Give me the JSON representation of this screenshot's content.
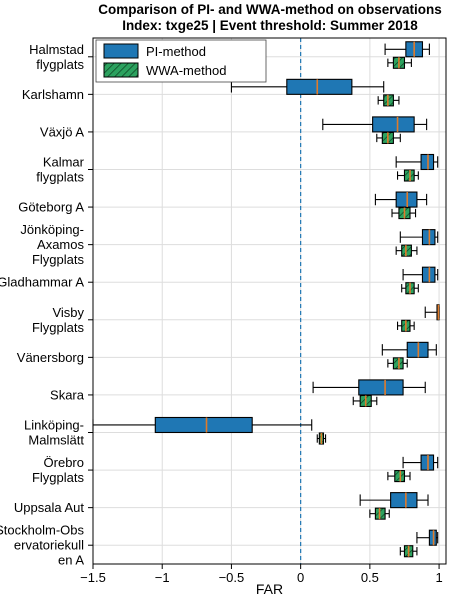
{
  "chart_data": {
    "type": "box",
    "title_line1": "Comparison of PI- and WWA-method on observations",
    "title_line2": "Index: txge25 | Event threshold: Summer 2018",
    "xlabel": "FAR",
    "xlim": [
      -1.5,
      1.05
    ],
    "xticks": [
      -1.5,
      -1.0,
      -0.5,
      0,
      0.5,
      1
    ],
    "xtick_labels": [
      "−1.5",
      "−1",
      "−0.5",
      "0",
      "0.5",
      "1"
    ],
    "reference_line_x": 0,
    "grid": true,
    "legend": {
      "placement": "top-left",
      "entries": [
        "PI-method",
        "WWA-method"
      ]
    },
    "colors": {
      "pi_fill": "#1f77b4",
      "wwa_fill": "#2ca25f",
      "median": "#e07b2a",
      "reference_line": "#1f77b4",
      "grid": "#dddddd"
    },
    "stations": [
      {
        "label": [
          "Halmstad",
          "flygplats"
        ],
        "pi": {
          "whislo": 0.61,
          "q1": 0.76,
          "med": 0.82,
          "q3": 0.88,
          "whishi": 0.93
        },
        "wwa": {
          "whislo": 0.63,
          "q1": 0.67,
          "med": 0.71,
          "q3": 0.75,
          "whishi": 0.8
        }
      },
      {
        "label": [
          "Karlshamn"
        ],
        "pi": {
          "whislo": -0.5,
          "q1": -0.1,
          "med": 0.12,
          "q3": 0.37,
          "whishi": 0.6
        },
        "wwa": {
          "whislo": 0.56,
          "q1": 0.6,
          "med": 0.63,
          "q3": 0.67,
          "whishi": 0.71
        }
      },
      {
        "label": [
          "Växjö A"
        ],
        "pi": {
          "whislo": 0.16,
          "q1": 0.52,
          "med": 0.7,
          "q3": 0.82,
          "whishi": 0.91
        },
        "wwa": {
          "whislo": 0.55,
          "q1": 0.59,
          "med": 0.63,
          "q3": 0.67,
          "whishi": 0.72
        }
      },
      {
        "label": [
          "Kalmar",
          "flygplats"
        ],
        "pi": {
          "whislo": 0.69,
          "q1": 0.87,
          "med": 0.92,
          "q3": 0.96,
          "whishi": 0.99
        },
        "wwa": {
          "whislo": 0.7,
          "q1": 0.75,
          "med": 0.79,
          "q3": 0.82,
          "whishi": 0.85
        }
      },
      {
        "label": [
          "Göteborg A"
        ],
        "pi": {
          "whislo": 0.54,
          "q1": 0.69,
          "med": 0.77,
          "q3": 0.84,
          "whishi": 0.91
        },
        "wwa": {
          "whislo": 0.66,
          "q1": 0.71,
          "med": 0.75,
          "q3": 0.79,
          "whishi": 0.83
        }
      },
      {
        "label": [
          "Jönköping-",
          "Axamos",
          "Flygplats"
        ],
        "pi": {
          "whislo": 0.72,
          "q1": 0.88,
          "med": 0.93,
          "q3": 0.97,
          "whishi": 0.99
        },
        "wwa": {
          "whislo": 0.69,
          "q1": 0.73,
          "med": 0.76,
          "q3": 0.8,
          "whishi": 0.84
        }
      },
      {
        "label": [
          "Gladhammar A"
        ],
        "pi": {
          "whislo": 0.74,
          "q1": 0.88,
          "med": 0.93,
          "q3": 0.97,
          "whishi": 0.99
        },
        "wwa": {
          "whislo": 0.73,
          "q1": 0.76,
          "med": 0.79,
          "q3": 0.82,
          "whishi": 0.85
        }
      },
      {
        "label": [
          "Visby",
          "Flygplats"
        ],
        "pi": {
          "whislo": 0.9,
          "q1": 0.985,
          "med": 0.995,
          "q3": 1.0,
          "whishi": 1.0
        },
        "wwa": {
          "whislo": 0.7,
          "q1": 0.73,
          "med": 0.76,
          "q3": 0.79,
          "whishi": 0.82
        }
      },
      {
        "label": [
          "Vänersborg"
        ],
        "pi": {
          "whislo": 0.59,
          "q1": 0.77,
          "med": 0.85,
          "q3": 0.92,
          "whishi": 0.98
        },
        "wwa": {
          "whislo": 0.63,
          "q1": 0.67,
          "med": 0.71,
          "q3": 0.74,
          "whishi": 0.77
        }
      },
      {
        "label": [
          "Skara"
        ],
        "pi": {
          "whislo": 0.09,
          "q1": 0.42,
          "med": 0.61,
          "q3": 0.74,
          "whishi": 0.9
        },
        "wwa": {
          "whislo": 0.38,
          "q1": 0.43,
          "med": 0.47,
          "q3": 0.51,
          "whishi": 0.55
        }
      },
      {
        "label": [
          "Linköping-",
          "Malmslätt"
        ],
        "pi": {
          "whislo": -1.5,
          "q1": -1.05,
          "med": -0.68,
          "q3": -0.35,
          "whishi": 0.08
        },
        "wwa": {
          "whislo": 0.12,
          "q1": 0.135,
          "med": 0.15,
          "q3": 0.165,
          "whishi": 0.18
        }
      },
      {
        "label": [
          "Örebro",
          "Flygplats"
        ],
        "pi": {
          "whislo": 0.74,
          "q1": 0.87,
          "med": 0.92,
          "q3": 0.96,
          "whishi": 0.99
        },
        "wwa": {
          "whislo": 0.63,
          "q1": 0.68,
          "med": 0.72,
          "q3": 0.75,
          "whishi": 0.79
        }
      },
      {
        "label": [
          "Uppsala Aut"
        ],
        "pi": {
          "whislo": 0.43,
          "q1": 0.65,
          "med": 0.76,
          "q3": 0.84,
          "whishi": 0.92
        },
        "wwa": {
          "whislo": 0.5,
          "q1": 0.54,
          "med": 0.57,
          "q3": 0.61,
          "whishi": 0.64
        }
      },
      {
        "label": [
          "Stockholm-Obs",
          "ervatoriekull",
          "en A"
        ],
        "pi": {
          "whislo": 0.84,
          "q1": 0.93,
          "med": 0.96,
          "q3": 0.98,
          "whishi": 0.99
        },
        "wwa": {
          "whislo": 0.72,
          "q1": 0.75,
          "med": 0.78,
          "q3": 0.81,
          "whishi": 0.84
        }
      }
    ]
  }
}
